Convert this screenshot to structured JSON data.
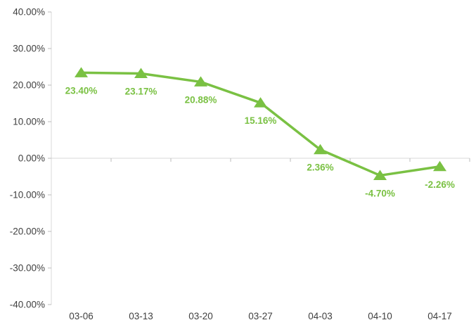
{
  "chart_data": {
    "type": "line",
    "title": "",
    "xlabel": "",
    "ylabel": "",
    "categories": [
      "03-06",
      "03-13",
      "03-20",
      "03-27",
      "04-03",
      "04-10",
      "04-17"
    ],
    "series": [
      {
        "name": "series-1",
        "values": [
          23.4,
          23.17,
          20.88,
          15.16,
          2.36,
          -4.7,
          -2.26
        ],
        "data_labels": [
          "23.40%",
          "23.17%",
          "20.88%",
          "15.16%",
          "2.36%",
          "-4.70%",
          "-2.26%"
        ],
        "color": "#7AC143",
        "marker": "triangle-up",
        "data_labels_position": "below"
      }
    ],
    "y_axis": {
      "min": -40,
      "max": 40,
      "step": 10,
      "tick_labels": [
        "40.00%",
        "30.00%",
        "20.00%",
        "10.00%",
        "0.00%",
        "-10.00%",
        "-20.00%",
        "-30.00%",
        "-40.00%"
      ]
    },
    "x_axis": {
      "position": "zero-line",
      "labels_position": "low"
    },
    "grid": false,
    "legend_visible": false,
    "colors": {
      "axis_line": "#D9D9D9",
      "tick": "#BDBDBD",
      "axis_text": "#404040",
      "background": "#FFFFFF"
    }
  }
}
